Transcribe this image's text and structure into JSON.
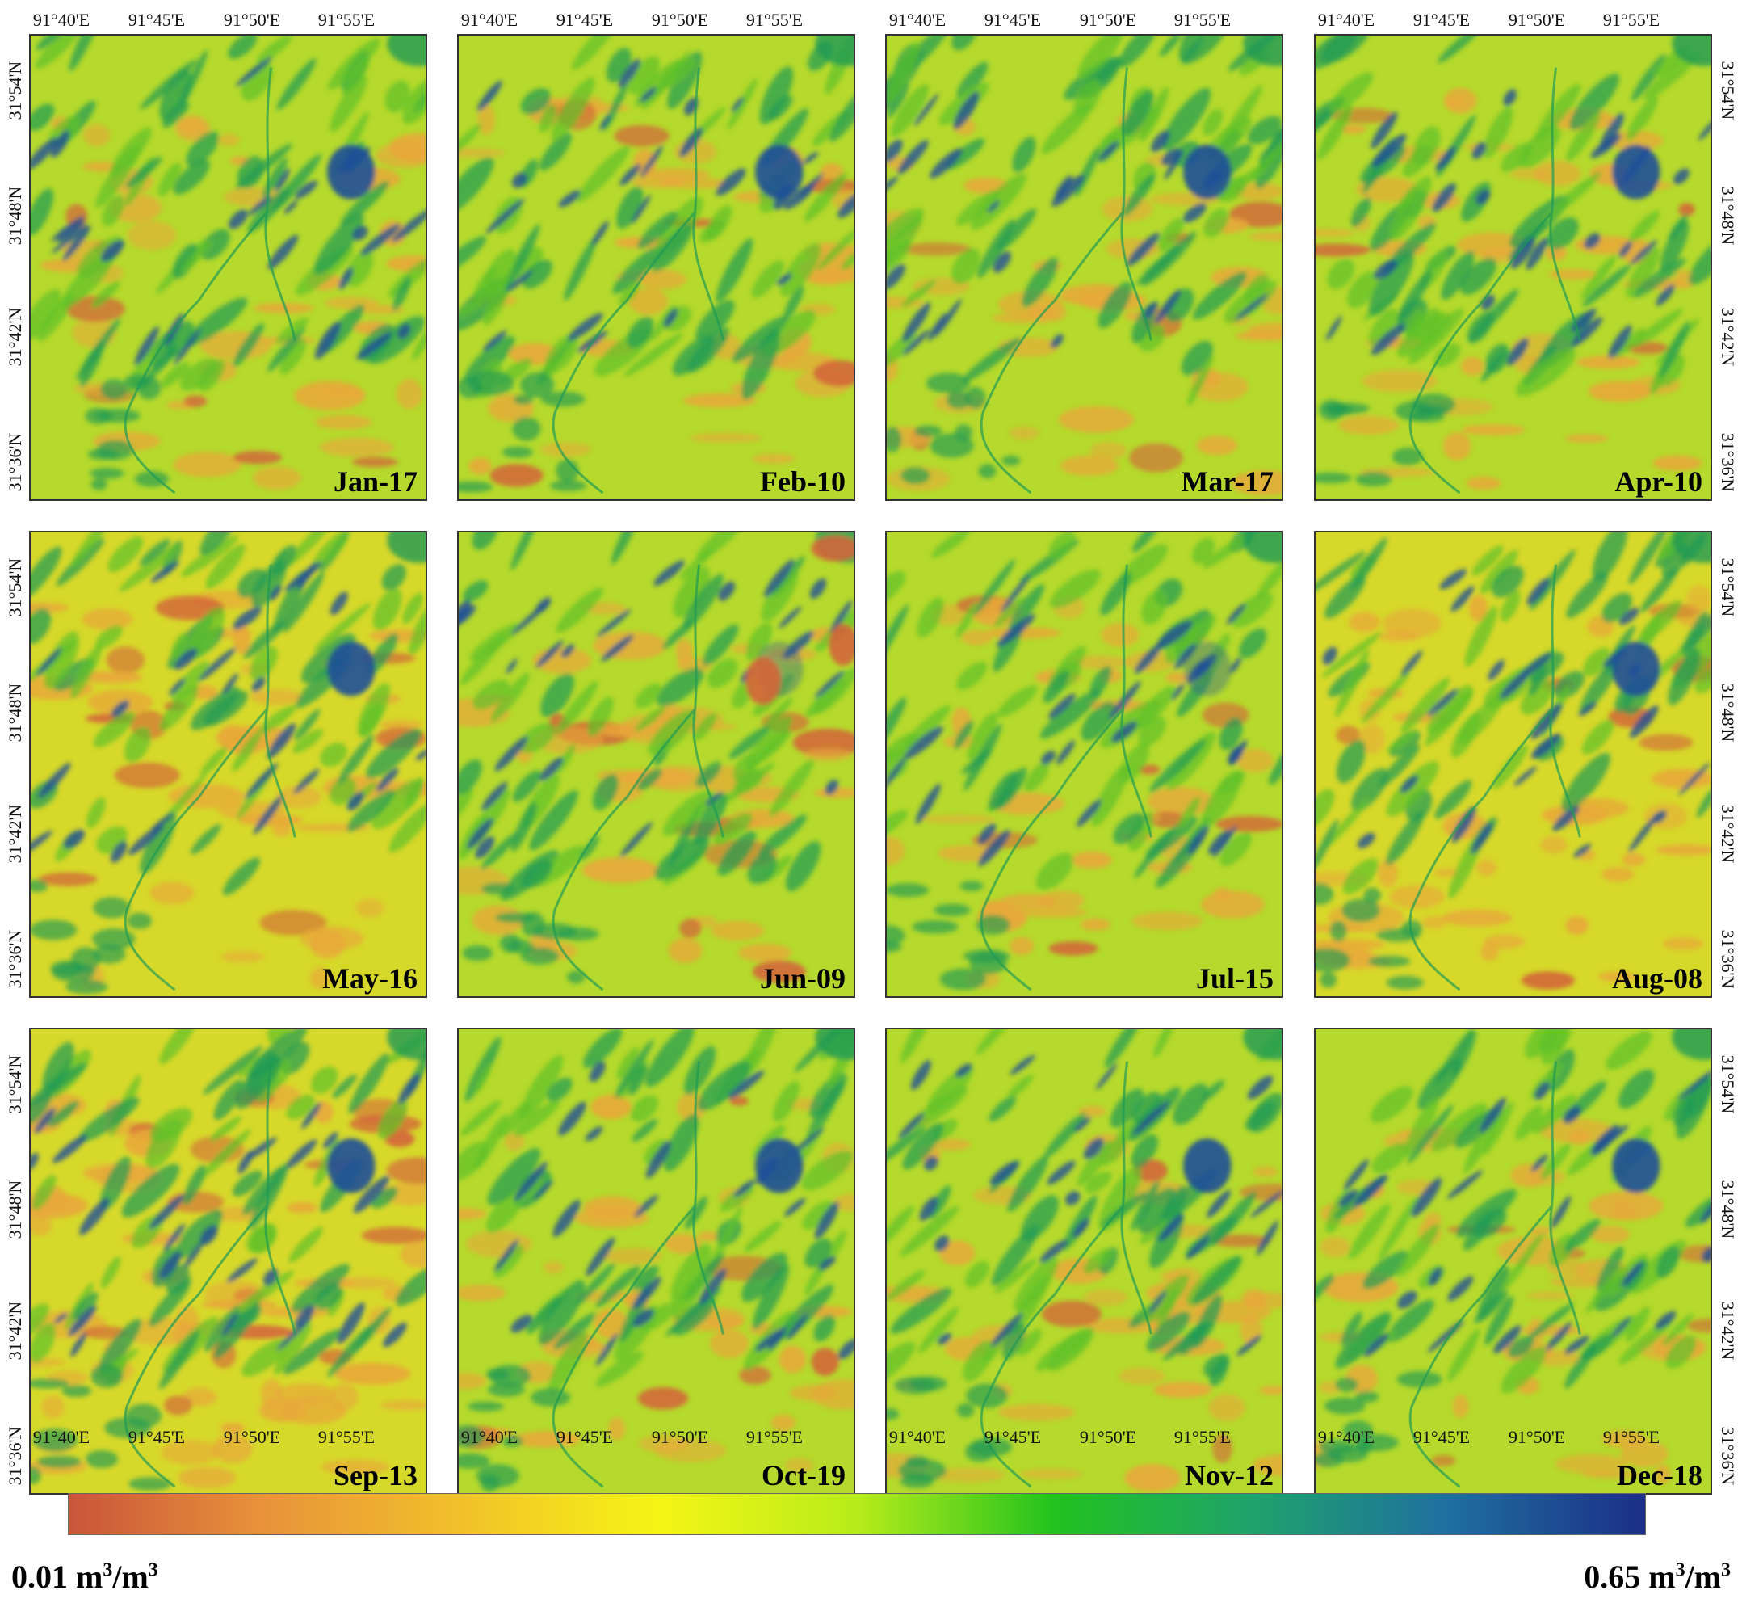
{
  "panels": [
    {
      "date": "Jan-17"
    },
    {
      "date": "Feb-10"
    },
    {
      "date": "Mar-17"
    },
    {
      "date": "Apr-10"
    },
    {
      "date": "May-16"
    },
    {
      "date": "Jun-09"
    },
    {
      "date": "Jul-15"
    },
    {
      "date": "Aug-08"
    },
    {
      "date": "Sep-13"
    },
    {
      "date": "Oct-19"
    },
    {
      "date": "Nov-12"
    },
    {
      "date": "Dec-18"
    }
  ],
  "longitude_ticks": [
    "91°40'E",
    "91°45'E",
    "91°50'E",
    "91°55'E"
  ],
  "latitude_ticks": [
    "31°36'N",
    "31°42'N",
    "31°48'N",
    "31°54'N"
  ],
  "colorbar": {
    "min_value": "0.01",
    "max_value": "0.65",
    "unit_base": "m",
    "unit_sup": "3",
    "unit_tail": "/m",
    "stops": [
      "#c9553a",
      "#e8933a",
      "#f2c12a",
      "#f5f515",
      "#b7ec1a",
      "#22c21e",
      "#1fa36b",
      "#1f6fa0",
      "#1b2f86"
    ]
  },
  "map_colors": {
    "dry": "#e8a83a",
    "mid": "#d6d82a",
    "wet": "#5ec02a",
    "wetter": "#1f9a55",
    "wettest": "#1e4f99",
    "very_dry": "#d3653a"
  }
}
